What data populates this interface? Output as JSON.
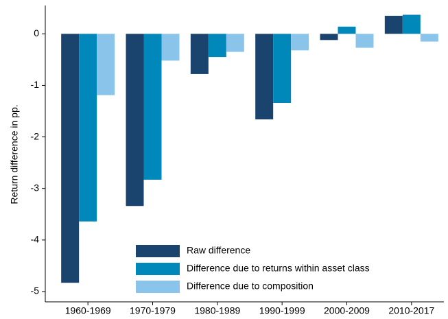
{
  "chart_data": {
    "type": "bar",
    "y_label": "Return difference in pp.",
    "categories": [
      "1960-1969",
      "1970-1979",
      "1980-1989",
      "1990-1999",
      "2000-2009",
      "2010-2017"
    ],
    "series": [
      {
        "name": "Raw difference",
        "color": "#1a446e",
        "values": [
          -4.83,
          -3.34,
          -0.78,
          -1.66,
          -0.12,
          0.35
        ]
      },
      {
        "name": "Difference due to returns within asset class",
        "color": "#0088bb",
        "values": [
          -3.64,
          -2.83,
          -0.45,
          -1.34,
          0.14,
          0.37
        ]
      },
      {
        "name": "Difference due to composition",
        "color": "#8ac4ea",
        "values": [
          -1.19,
          -0.52,
          -0.35,
          -0.32,
          -0.27,
          -0.15
        ]
      }
    ],
    "ylim": [
      -5.2,
      0.55
    ],
    "yticks": [
      0,
      -1,
      -2,
      -3,
      -4,
      -5
    ],
    "grid": false,
    "legend": "lower center"
  }
}
